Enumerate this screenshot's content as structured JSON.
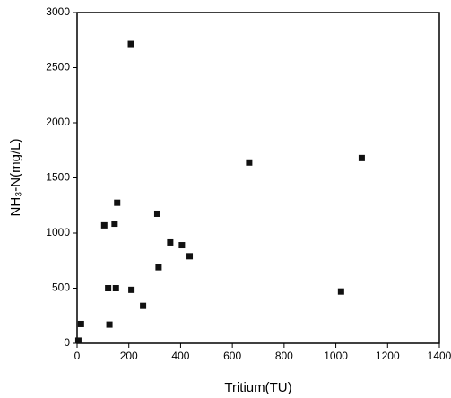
{
  "chart_data": {
    "type": "scatter",
    "x_label": "Tritium(TU)",
    "y_label": "NH₃-N(mg/L)",
    "series": [
      {
        "color": "#111111",
        "x": [
          208,
          665,
          1100,
          155,
          310,
          105,
          145,
          360,
          405,
          435,
          315,
          120,
          150,
          210,
          1020,
          255,
          125,
          15,
          5
        ],
        "values": [
          2715,
          1640,
          1680,
          1275,
          1175,
          1070,
          1085,
          915,
          890,
          790,
          690,
          500,
          500,
          485,
          470,
          340,
          170,
          175,
          25
        ]
      }
    ],
    "xlim": [
      0,
      1400
    ],
    "xticks": [
      0,
      200,
      400,
      600,
      800,
      1000,
      1200,
      1400
    ],
    "ylim": [
      0,
      3000
    ],
    "yticks": [
      0,
      500,
      1000,
      1500,
      2000,
      2500,
      3000
    ],
    "grid": false
  }
}
